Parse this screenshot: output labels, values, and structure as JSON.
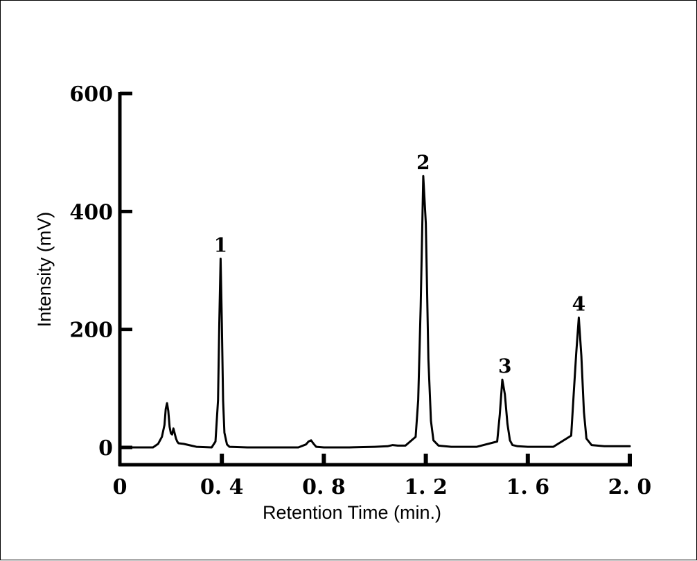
{
  "chart_data": {
    "type": "line",
    "title": "",
    "xlabel": "Retention Time (min.)",
    "ylabel": "Intensity (mV)",
    "xlim": [
      0,
      2.0
    ],
    "ylim": [
      0,
      600
    ],
    "x_ticks": [
      {
        "value": 0,
        "label": "0"
      },
      {
        "value": 0.4,
        "label": "0. 4"
      },
      {
        "value": 0.8,
        "label": "0. 8"
      },
      {
        "value": 1.2,
        "label": "1. 2"
      },
      {
        "value": 1.6,
        "label": "1. 6"
      },
      {
        "value": 2.0,
        "label": "2. 0"
      }
    ],
    "y_ticks": [
      {
        "value": 0,
        "label": "0"
      },
      {
        "value": 200,
        "label": "200"
      },
      {
        "value": 400,
        "label": "400"
      },
      {
        "value": 600,
        "label": "600"
      }
    ],
    "grid": false,
    "series": [
      {
        "x": [
          0.0,
          0.13,
          0.15,
          0.165,
          0.175,
          0.18,
          0.185,
          0.19,
          0.195,
          0.2,
          0.205,
          0.21,
          0.215,
          0.22,
          0.225,
          0.23,
          0.25,
          0.28,
          0.3,
          0.36,
          0.375,
          0.385,
          0.39,
          0.395,
          0.4,
          0.405,
          0.41,
          0.42,
          0.43,
          0.5,
          0.6,
          0.7,
          0.73,
          0.74,
          0.75,
          0.76,
          0.77,
          0.8,
          0.9,
          1.0,
          1.05,
          1.07,
          1.09,
          1.12,
          1.16,
          1.17,
          1.18,
          1.19,
          1.2,
          1.21,
          1.22,
          1.23,
          1.25,
          1.3,
          1.4,
          1.48,
          1.49,
          1.5,
          1.51,
          1.52,
          1.53,
          1.54,
          1.56,
          1.6,
          1.7,
          1.77,
          1.78,
          1.79,
          1.8,
          1.81,
          1.82,
          1.83,
          1.85,
          1.9,
          2.0
        ],
        "y": [
          0,
          0,
          6,
          18,
          38,
          65,
          75,
          62,
          35,
          24,
          22,
          32,
          24,
          15,
          10,
          7,
          6,
          3,
          1,
          0,
          10,
          80,
          210,
          320,
          210,
          80,
          25,
          5,
          1,
          0,
          0,
          0,
          5,
          10,
          12,
          6,
          1,
          0,
          0,
          1,
          2,
          4,
          3,
          3,
          18,
          80,
          240,
          460,
          380,
          150,
          45,
          12,
          3,
          1,
          1,
          10,
          55,
          115,
          90,
          40,
          12,
          4,
          2,
          1,
          1,
          20,
          90,
          160,
          220,
          155,
          60,
          15,
          4,
          2,
          2
        ]
      }
    ],
    "annotations": [
      {
        "text": "1",
        "x": 0.395,
        "y": 320
      },
      {
        "text": "2",
        "x": 1.19,
        "y": 460
      },
      {
        "text": "3",
        "x": 1.51,
        "y": 115
      },
      {
        "text": "4",
        "x": 1.8,
        "y": 220
      }
    ]
  },
  "style": {
    "line_color": "#000000",
    "axis_color": "#000000",
    "background": "#ffffff"
  }
}
